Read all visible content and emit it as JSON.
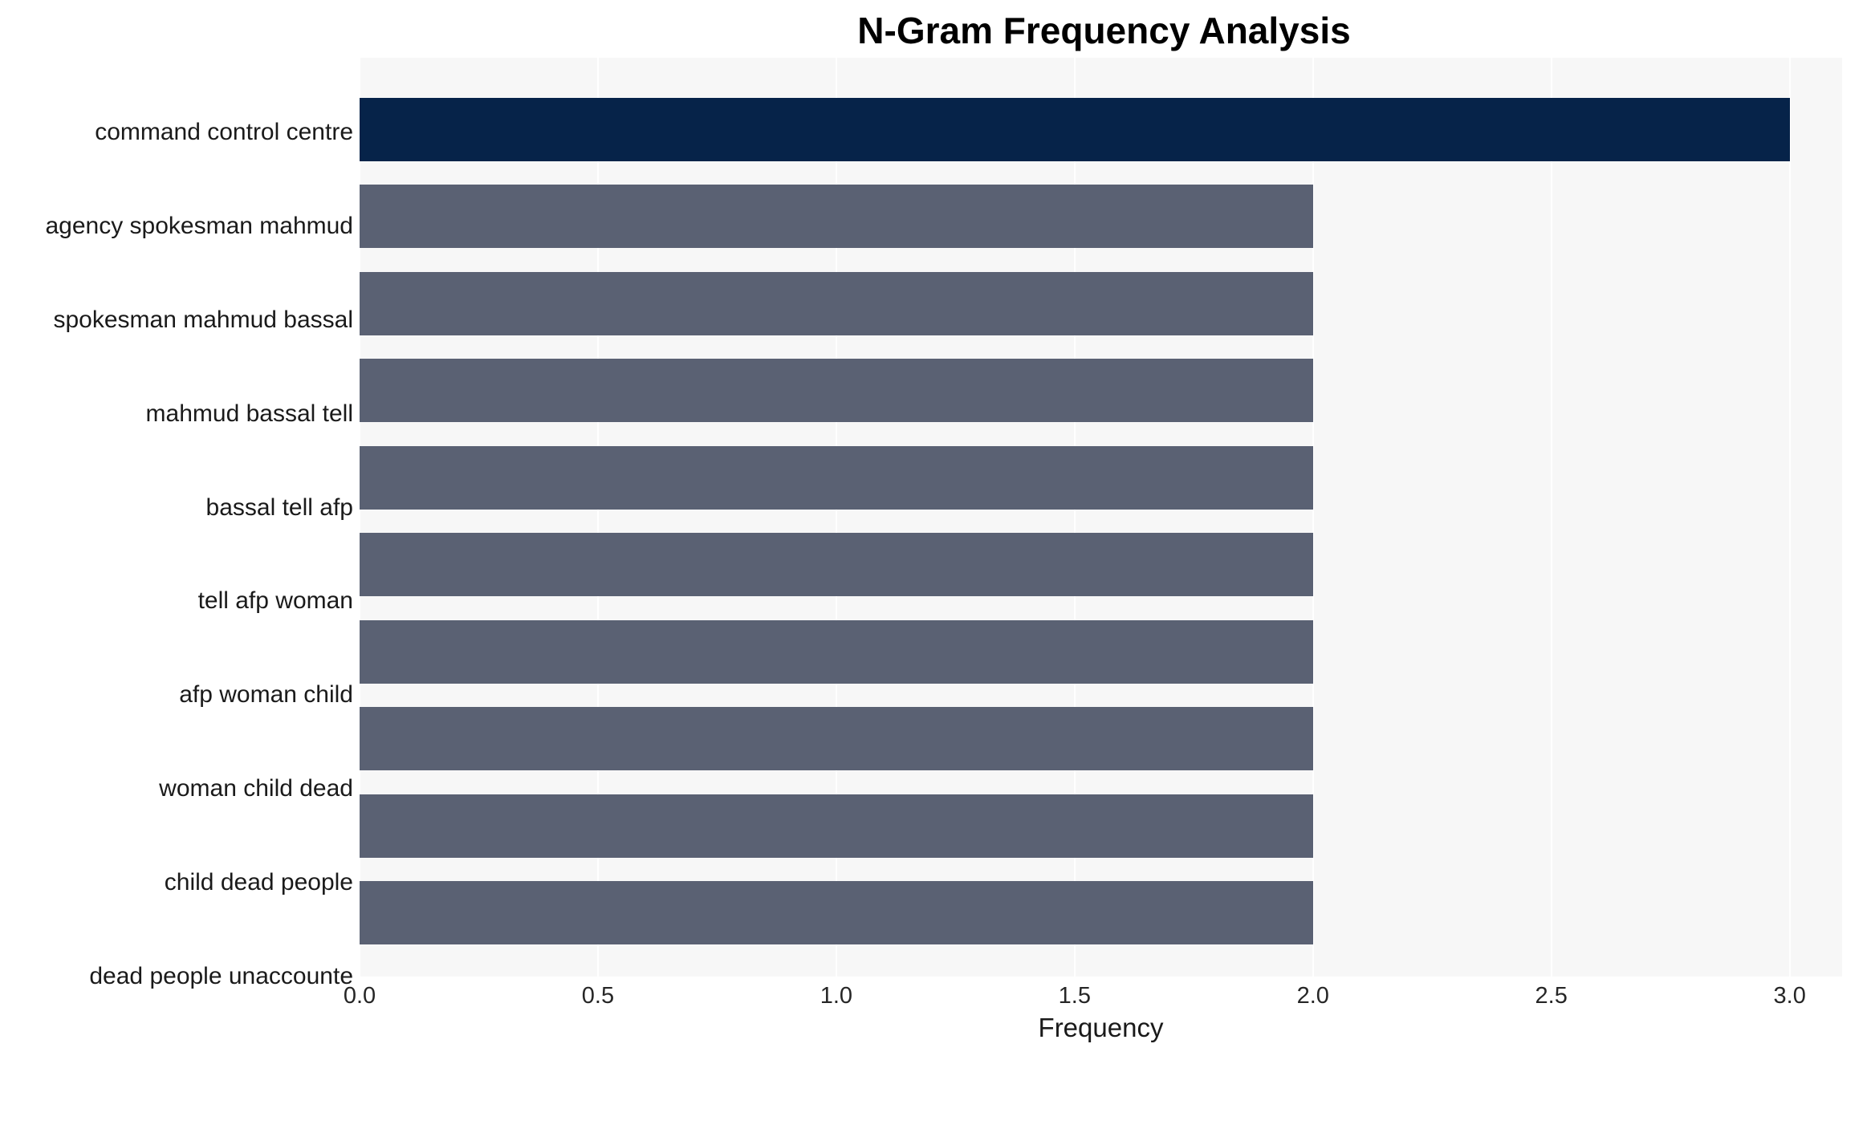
{
  "chart_data": {
    "type": "bar",
    "orientation": "horizontal",
    "title": "N-Gram Frequency Analysis",
    "xlabel": "Frequency",
    "ylabel": "",
    "categories": [
      "command control centre",
      "agency spokesman mahmud",
      "spokesman mahmud bassal",
      "mahmud bassal tell",
      "bassal tell afp",
      "tell afp woman",
      "afp woman child",
      "woman child dead",
      "child dead people",
      "dead people unaccounte"
    ],
    "values": [
      3,
      2,
      2,
      2,
      2,
      2,
      2,
      2,
      2,
      2
    ],
    "xlim": [
      0,
      3.11
    ],
    "xticks": [
      0,
      0.5,
      1,
      1.5,
      2,
      2.5,
      3
    ],
    "xtick_labels": [
      "0.0",
      "0.5",
      "1.0",
      "1.5",
      "2.0",
      "2.5",
      "3.0"
    ],
    "grid": true,
    "legend": "none",
    "highlight_index": 0,
    "colors": {
      "highlight": "#062349",
      "default": "#5a6173",
      "plot_bg": "#f7f7f7",
      "grid": "#ffffff"
    }
  }
}
